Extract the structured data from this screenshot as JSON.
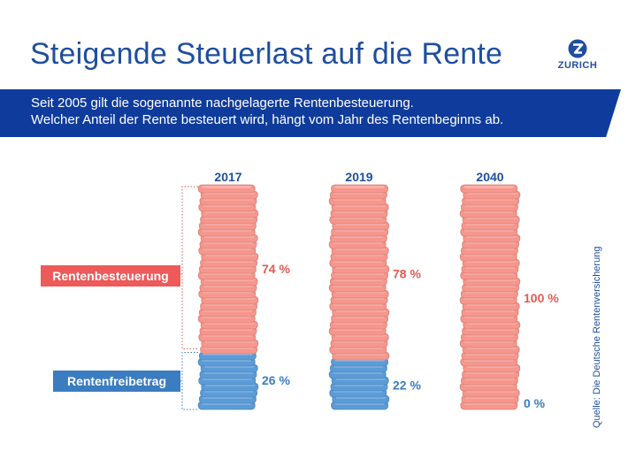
{
  "header": {
    "title": "Steigende Steuerlast auf die Rente",
    "logo_text": "ZURICH",
    "intro_line1": "Seit 2005 gilt die sogenannte nachgelagerte Rentenbesteuerung.",
    "intro_line2": "Welcher Anteil der Rente besteuert wird, hängt vom Jahr des Rentenbeginns ab."
  },
  "legend": {
    "taxed": "Rentenbesteuerung",
    "free": "Rentenfreibetrag"
  },
  "source": "Quelle: Die Deutsche Rentenversicherung",
  "colors": {
    "brand_blue": "#1f4e9e",
    "band_blue": "#0f3c9c",
    "taxed_coin": "#f6968c",
    "free_coin": "#5b9bd8",
    "taxed_label": "#e25a52",
    "free_label": "#3b7dc0"
  },
  "chart_data": {
    "type": "bar",
    "stacked": true,
    "categories": [
      "2017",
      "2019",
      "2040"
    ],
    "series": [
      {
        "name": "Rentenbesteuerung",
        "values": [
          74,
          78,
          100
        ],
        "labels": [
          "74 %",
          "78 %",
          "100 %"
        ]
      },
      {
        "name": "Rentenfreibetrag",
        "values": [
          26,
          22,
          0
        ],
        "labels": [
          "26 %",
          "22 %",
          "0 %"
        ]
      }
    ],
    "unit": "%",
    "ylim": [
      0,
      100
    ]
  }
}
